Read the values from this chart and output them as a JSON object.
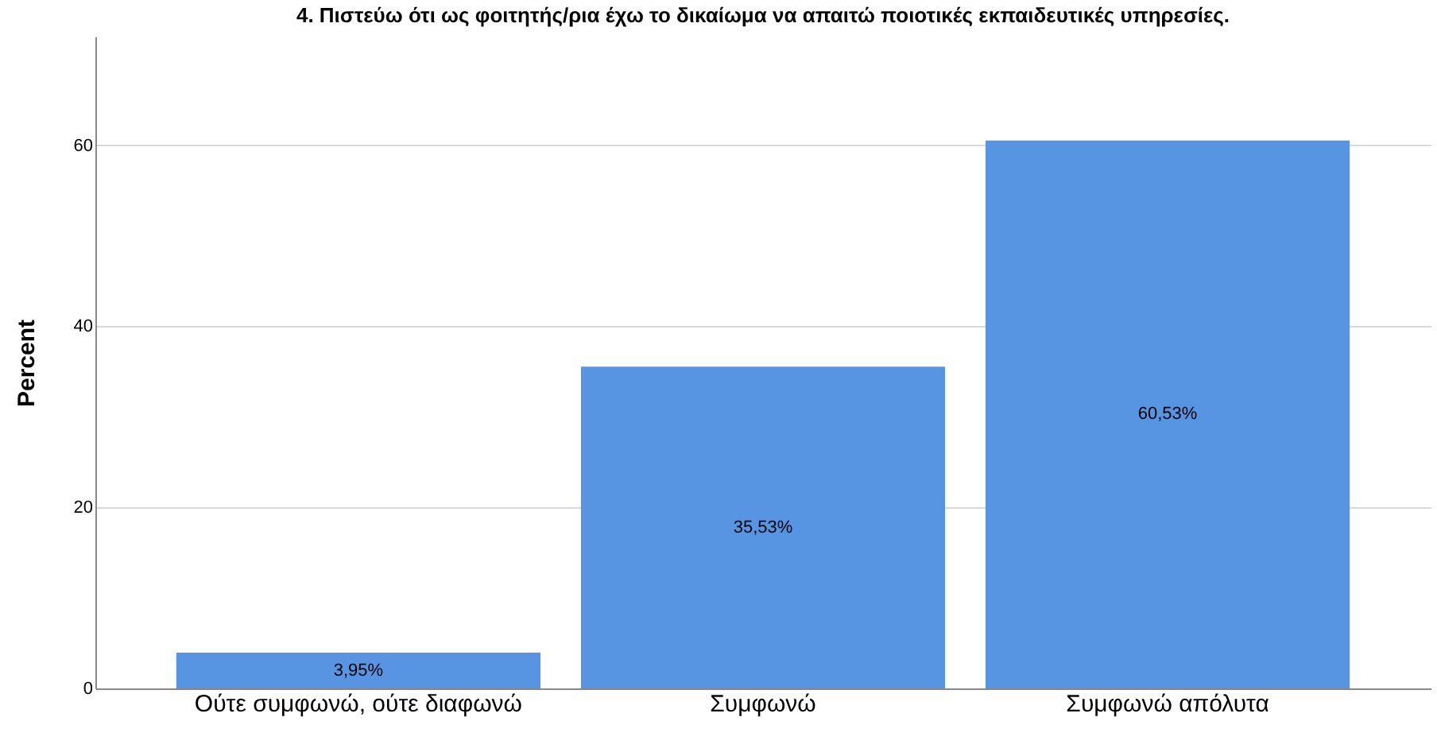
{
  "chart_data": {
    "type": "bar",
    "title": "4. Πιστεύω ότι ως φοιτητής/ρια έχω το δικαίωμα να απαιτώ ποιοτικές εκπαιδευτικές υπηρεσίες.",
    "ylabel": "Percent",
    "categories": [
      "Ούτε συμφωνώ, ούτε διαφωνώ",
      "Συμφωνώ",
      "Συμφωνώ απόλυτα"
    ],
    "values": [
      3.95,
      35.53,
      60.53
    ],
    "value_labels": [
      "3,95%",
      "35,53%",
      "60,53%"
    ],
    "color": "#5795e3",
    "ylim": [
      0,
      72
    ],
    "yticks": [
      0,
      20,
      40,
      60
    ],
    "grid": "y"
  }
}
